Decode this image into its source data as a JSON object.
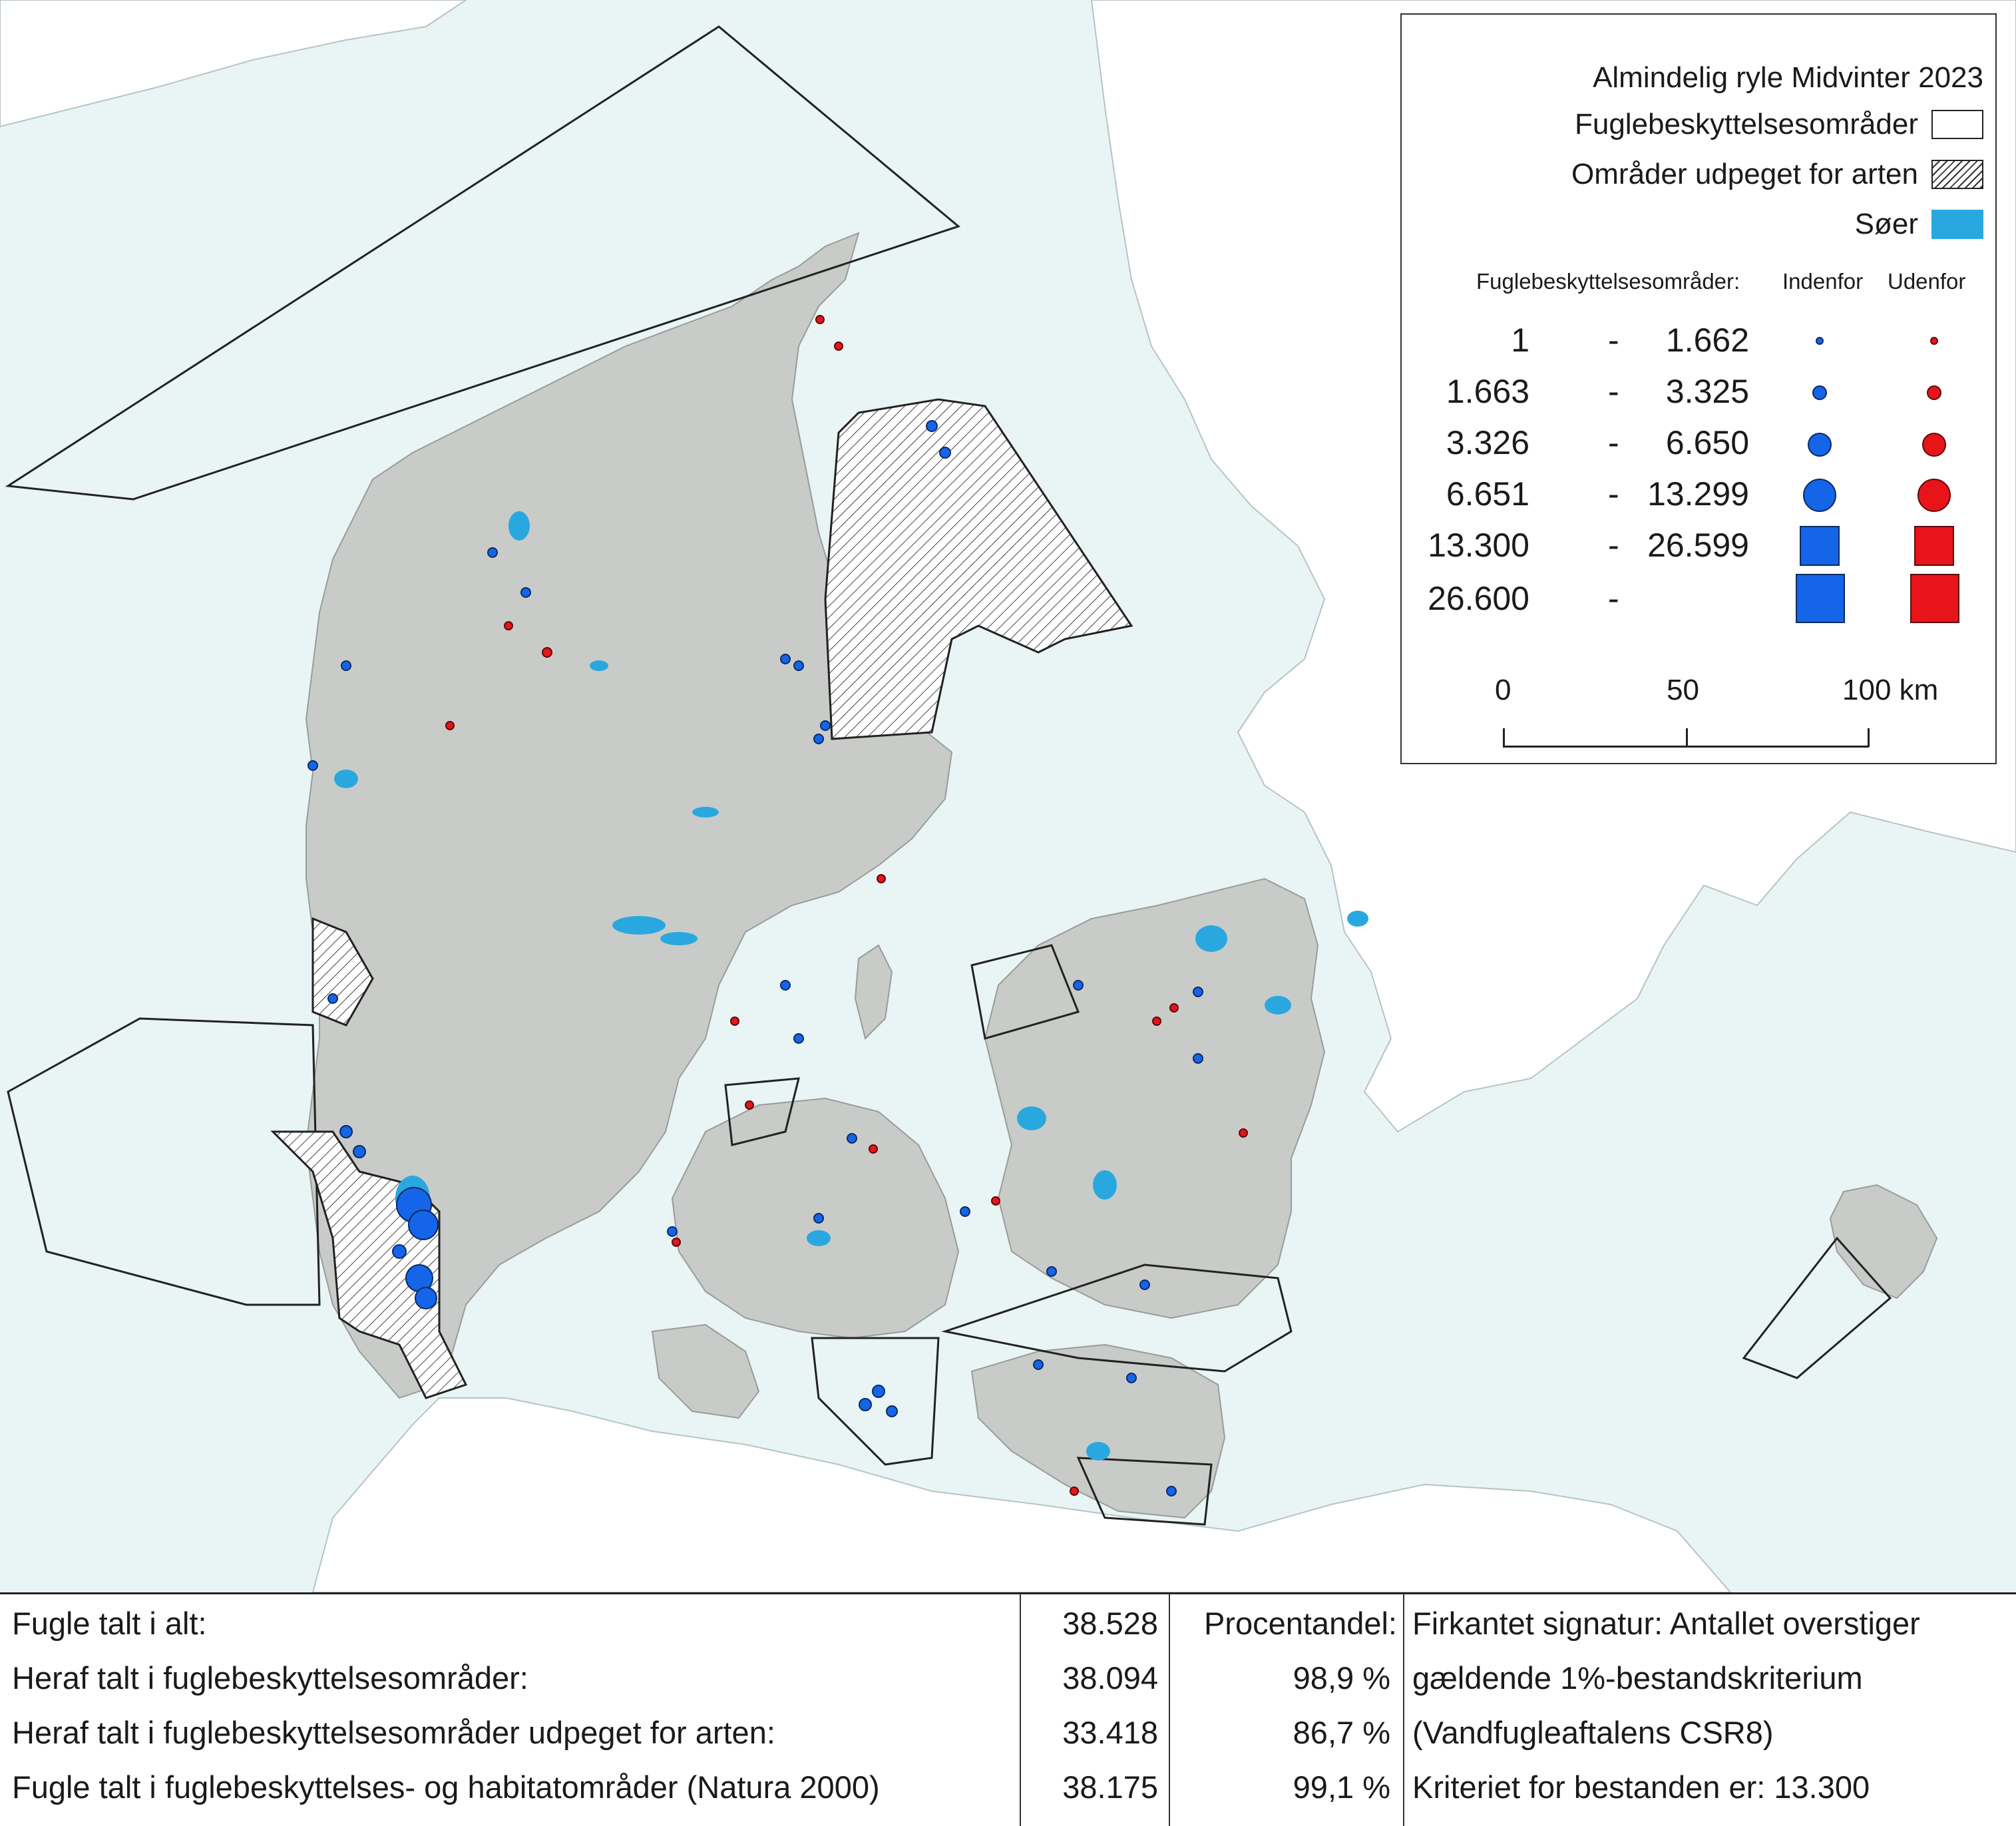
{
  "map": {
    "colors": {
      "sea": "#e9f4f4",
      "foreign_land": "#ffffff",
      "denmark": "#c9cbc8",
      "lakes": "#29a8e0",
      "inside": "#1565e8",
      "outside": "#e8141a"
    }
  },
  "legend": {
    "title": "Almindelig ryle Midvinter 2023",
    "spa_label": "Fuglebeskyttelsesområder",
    "designated_label": "Områder udpeget for arten",
    "lakes_label": "Søer",
    "sub_header": "Fuglebeskyttelsesområder:",
    "col_inside": "Indenfor",
    "col_outside": "Udenfor",
    "classes": [
      {
        "lo": "1",
        "dash": "-",
        "hi": "1.662",
        "shape": "circle"
      },
      {
        "lo": "1.663",
        "dash": "-",
        "hi": "3.325",
        "shape": "circle"
      },
      {
        "lo": "3.326",
        "dash": "-",
        "hi": "6.650",
        "shape": "circle"
      },
      {
        "lo": "6.651",
        "dash": "-",
        "hi": "13.299",
        "shape": "circle"
      },
      {
        "lo": "13.300",
        "dash": "-",
        "hi": "26.599",
        "shape": "square"
      },
      {
        "lo": "26.600",
        "dash": "-",
        "hi": "",
        "shape": "square"
      }
    ],
    "scale": {
      "t0": "0",
      "t1": "50",
      "t2": "100 km"
    }
  },
  "stats": {
    "rows": [
      {
        "label": "Fugle talt i alt:",
        "value": "38.528",
        "pct": ""
      },
      {
        "label": "Heraf talt i fuglebeskyttelsesområder:",
        "value": "38.094",
        "pct": "98,9 %"
      },
      {
        "label": "Heraf talt i fuglebeskyttelsesområder udpeget for arten:",
        "value": "33.418",
        "pct": "86,7 %"
      },
      {
        "label": "Fugle talt i fuglebeskyttelses- og habitatområder (Natura 2000)",
        "value": "38.175",
        "pct": "99,1 %"
      }
    ],
    "pct_header": "Procentandel:",
    "note": [
      "Firkantet signatur: Antallet overstiger",
      "gældende 1%-bestandskriterium",
      "(Vandfugleaftalens CSR8)",
      "Kriteriet for bestanden er: 13.300"
    ]
  }
}
